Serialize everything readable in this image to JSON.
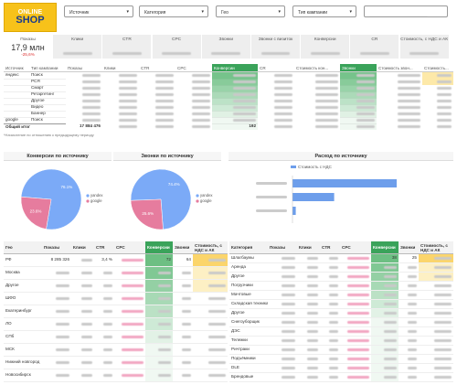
{
  "header": {
    "logo": [
      "ONLINE",
      "SHOP"
    ],
    "filters": [
      "Источник",
      "Категория",
      "Гео",
      "Тип кампании"
    ]
  },
  "kpis": [
    {
      "label": "Показы",
      "value": "17,9 млн",
      "delta": "-25,6%"
    },
    {
      "label": "Клики"
    },
    {
      "label": "CTR"
    },
    {
      "label": "CPC"
    },
    {
      "label": "Звонки"
    },
    {
      "label": "Звонки с визиток"
    },
    {
      "label": "Конверсии"
    },
    {
      "label": "CR"
    },
    {
      "label": "Стоимость, с НДС и АК"
    }
  ],
  "source_table": {
    "columns": [
      "Источник",
      "Тип кампании",
      "Показы",
      "Клики",
      "CTR",
      "CPC",
      "Конверсии",
      "CR",
      "Стоимость кон...",
      "Звонки",
      "Стоимость звон...",
      "Стоимость..."
    ],
    "groups": [
      {
        "source": "яндекс",
        "rows": [
          {
            "type": "Поиск",
            "cells": [
              null,
              null,
              null,
              null,
              null,
              null,
              null,
              null,
              null,
              null
            ]
          },
          {
            "type": "РСЯ",
            "cells": [
              null,
              null,
              null,
              null,
              null,
              null,
              null,
              null,
              null,
              null
            ]
          },
          {
            "type": "Смарт",
            "cells": [
              null,
              null,
              null,
              null,
              null,
              null,
              null,
              null,
              null,
              null
            ]
          },
          {
            "type": "Ретаргетинг",
            "cells": [
              null,
              null,
              null,
              null,
              null,
              null,
              null,
              null,
              null,
              null
            ]
          },
          {
            "type": "Другое",
            "cells": [
              null,
              null,
              null,
              null,
              null,
              null,
              null,
              null,
              null,
              null
            ]
          },
          {
            "type": "Видео",
            "cells": [
              null,
              null,
              null,
              null,
              null,
              null,
              null,
              null,
              null,
              null
            ]
          },
          {
            "type": "Баннер",
            "cells": [
              null,
              null,
              null,
              null,
              null,
              null,
              null,
              null,
              null,
              null
            ]
          }
        ]
      },
      {
        "source": "google",
        "rows": [
          {
            "type": "Поиск",
            "cells": [
              null,
              null,
              null,
              null,
              null,
              null,
              null,
              null,
              null,
              null
            ]
          }
        ]
      }
    ],
    "total": {
      "label": "Общий итог",
      "cells": [
        "17 884 476",
        null,
        null,
        null,
        "192",
        null,
        null,
        null,
        null,
        null
      ]
    }
  },
  "note": "*Начисление по отношению к предыдущему периоду",
  "chart_data": [
    {
      "type": "pie",
      "title": "Конверсии по источнику",
      "categories": [
        "yandex",
        "google"
      ],
      "values": [
        76.1,
        23.6
      ],
      "value_labels": [
        "76.1%",
        "23.6%"
      ],
      "colors": [
        "#7baaf7",
        "#e67c9e"
      ]
    },
    {
      "type": "pie",
      "title": "Звонки по источнику",
      "categories": [
        "yandex",
        "google"
      ],
      "values": [
        74.4,
        25.6
      ],
      "value_labels": [
        "74.4%",
        "25.6%"
      ],
      "colors": [
        "#7baaf7",
        "#e67c9e"
      ]
    },
    {
      "type": "bar",
      "orientation": "horizontal",
      "title": "Расход по источнику",
      "categories": [
        null,
        null,
        null
      ],
      "series": [
        {
          "name": "Стоимость с НДС",
          "color": "#6d9eeb",
          "values": [
            95,
            38,
            3
          ]
        }
      ],
      "xlim": [
        0,
        100
      ]
    }
  ],
  "geo_table": {
    "columns": [
      "Гео",
      "Показы",
      "Клики",
      "CTR",
      "CPC",
      "Конверсии",
      "Звонки",
      "Стоимость, с НДС и АК"
    ],
    "rows": [
      {
        "name": "РФ",
        "cells": [
          "8 285 326",
          null,
          "3,4 %",
          null,
          "72",
          "64",
          null
        ]
      },
      {
        "name": "Москва",
        "cells": [
          null,
          null,
          null,
          null,
          null,
          null,
          null
        ]
      },
      {
        "name": "Другое",
        "cells": [
          null,
          null,
          null,
          null,
          null,
          null,
          null
        ]
      },
      {
        "name": "ШФО",
        "cells": [
          null,
          null,
          null,
          null,
          null,
          null,
          null
        ]
      },
      {
        "name": "Екатеринбург",
        "cells": [
          null,
          null,
          null,
          null,
          null,
          null,
          null
        ]
      },
      {
        "name": "ЛО",
        "cells": [
          null,
          null,
          null,
          null,
          null,
          null,
          null
        ]
      },
      {
        "name": "СПб",
        "cells": [
          null,
          null,
          null,
          null,
          null,
          null,
          null
        ]
      },
      {
        "name": "МСК",
        "cells": [
          null,
          null,
          null,
          null,
          null,
          null,
          null
        ]
      },
      {
        "name": "Нижний новгород",
        "cells": [
          null,
          null,
          null,
          null,
          null,
          null,
          null
        ]
      },
      {
        "name": "Новосибирск",
        "cells": [
          null,
          null,
          null,
          null,
          null,
          null,
          null
        ]
      }
    ]
  },
  "category_table": {
    "columns": [
      "Категория",
      "Показы",
      "Клики",
      "CTR",
      "CPC",
      "Конверсии",
      "Звонки",
      "Стоимость, с НДС и АК"
    ],
    "rows": [
      {
        "name": "Шлагбаумы",
        "cells": [
          null,
          null,
          null,
          null,
          "38",
          "25",
          null
        ]
      },
      {
        "name": "Аренда",
        "cells": [
          null,
          null,
          null,
          null,
          null,
          null,
          null
        ]
      },
      {
        "name": "Другое",
        "cells": [
          null,
          null,
          null,
          null,
          null,
          null,
          null
        ]
      },
      {
        "name": "Погрузчики",
        "cells": [
          null,
          null,
          null,
          null,
          null,
          null,
          null
        ]
      },
      {
        "name": "Мачтовые",
        "cells": [
          null,
          null,
          null,
          null,
          null,
          null,
          null
        ]
      },
      {
        "name": "Складская техника",
        "cells": [
          null,
          null,
          null,
          null,
          null,
          null,
          null
        ]
      },
      {
        "name": "Другое",
        "cells": [
          null,
          null,
          null,
          null,
          null,
          null,
          null
        ]
      },
      {
        "name": "Снегоуборщик",
        "cells": [
          null,
          null,
          null,
          null,
          null,
          null,
          null
        ]
      },
      {
        "name": "ДЭС",
        "cells": [
          null,
          null,
          null,
          null,
          null,
          null,
          null
        ]
      },
      {
        "name": "Тележки",
        "cells": [
          null,
          null,
          null,
          null,
          null,
          null,
          null
        ]
      },
      {
        "name": "Ричтраки",
        "cells": [
          null,
          null,
          null,
          null,
          null,
          null,
          null
        ]
      },
      {
        "name": "Подъёмники",
        "cells": [
          null,
          null,
          null,
          null,
          null,
          null,
          null
        ]
      },
      {
        "name": "DLE",
        "cells": [
          null,
          null,
          null,
          null,
          null,
          null,
          null
        ]
      },
      {
        "name": "Брендовые",
        "cells": [
          null,
          null,
          null,
          null,
          null,
          null,
          null
        ]
      }
    ]
  }
}
